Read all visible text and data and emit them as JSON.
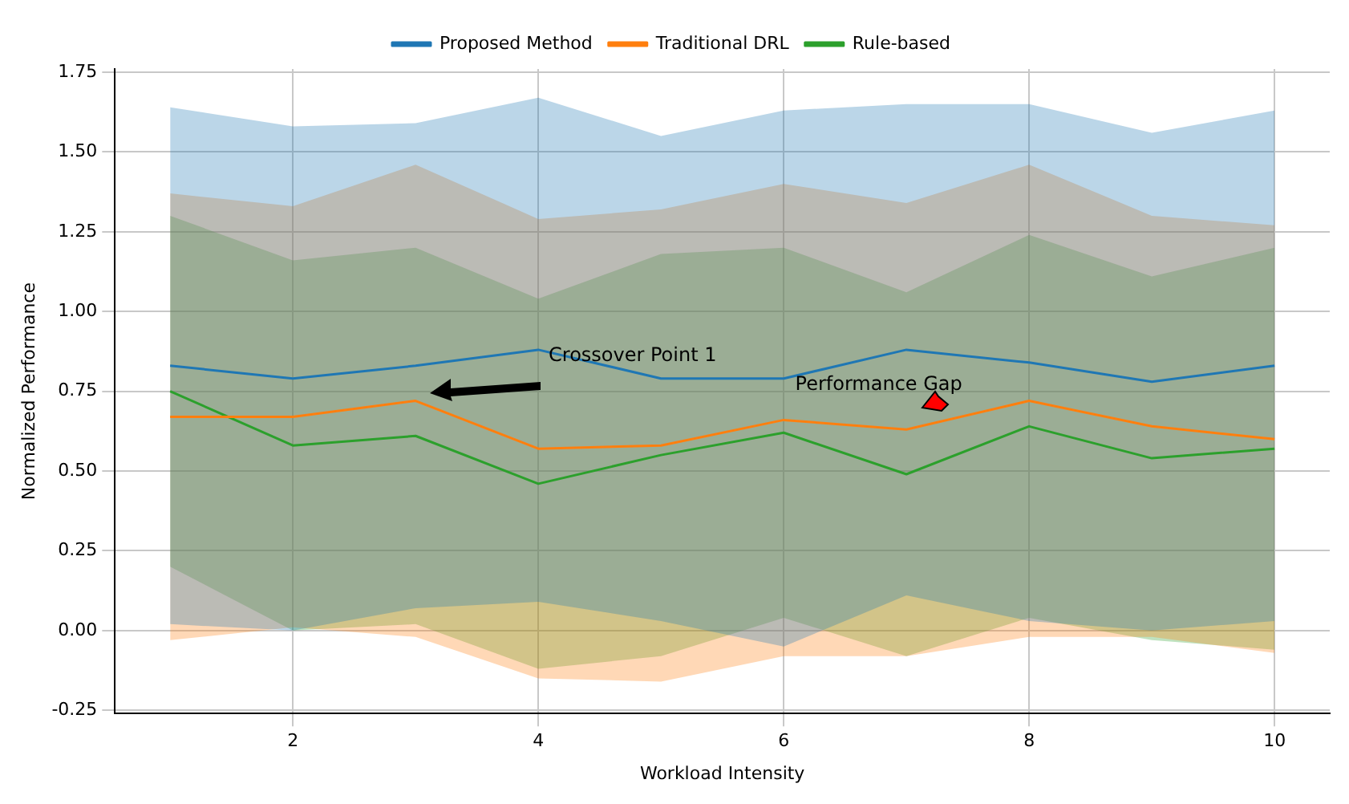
{
  "chart_data": {
    "type": "line",
    "xlabel": "Workload Intensity",
    "ylabel": "Normalized Performance",
    "x": [
      1,
      2,
      3,
      4,
      5,
      6,
      7,
      8,
      9,
      10
    ],
    "series": [
      {
        "name": "Proposed Method",
        "color": "#1f77b4",
        "values": [
          0.83,
          0.79,
          0.83,
          0.88,
          0.79,
          0.79,
          0.88,
          0.84,
          0.78,
          0.83
        ],
        "lower": [
          0.02,
          0.0,
          0.07,
          0.09,
          0.03,
          -0.05,
          0.11,
          0.03,
          0.0,
          0.03
        ],
        "upper": [
          1.64,
          1.58,
          1.59,
          1.67,
          1.55,
          1.63,
          1.65,
          1.65,
          1.56,
          1.63
        ]
      },
      {
        "name": "Traditional DRL",
        "color": "#ff7f0e",
        "values": [
          0.67,
          0.67,
          0.72,
          0.57,
          0.58,
          0.66,
          0.63,
          0.72,
          0.64,
          0.6
        ],
        "lower": [
          -0.03,
          0.01,
          -0.02,
          -0.15,
          -0.16,
          -0.08,
          -0.08,
          -0.02,
          -0.02,
          -0.07
        ],
        "upper": [
          1.37,
          1.33,
          1.46,
          1.29,
          1.32,
          1.4,
          1.34,
          1.46,
          1.3,
          1.27
        ]
      },
      {
        "name": "Rule-based",
        "color": "#2ca02c",
        "values": [
          0.75,
          0.58,
          0.61,
          0.46,
          0.55,
          0.62,
          0.49,
          0.64,
          0.54,
          0.57
        ],
        "lower": [
          0.2,
          0.0,
          0.02,
          -0.12,
          -0.08,
          0.04,
          -0.08,
          0.04,
          -0.03,
          -0.06
        ],
        "upper": [
          1.3,
          1.16,
          1.2,
          1.04,
          1.18,
          1.2,
          1.06,
          1.24,
          1.11,
          1.2
        ]
      }
    ],
    "xlim": [
      0.55,
      10.45
    ],
    "ylim": [
      -0.26,
      1.76
    ],
    "xticks": [
      2,
      4,
      6,
      8,
      10
    ],
    "yticks": [
      -0.25,
      {
        "value": 0,
        "label": "0.00"
      },
      0.25,
      {
        "value": 0.5,
        "label": "0.50"
      },
      0.75,
      {
        "value": 1,
        "label": "1.00"
      },
      1.25,
      {
        "value": 1.5,
        "label": "1.50"
      },
      1.75
    ],
    "grid": true,
    "legend": "top",
    "marker": "none",
    "line_style": "solid",
    "annotations": [
      "Crossover Point 1",
      "Performance Gap"
    ]
  }
}
